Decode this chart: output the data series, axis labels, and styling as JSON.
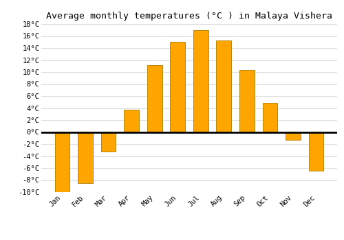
{
  "title": "Average monthly temperatures (°C ) in Malaya Vishera",
  "months": [
    "Jan",
    "Feb",
    "Mar",
    "Apr",
    "May",
    "Jun",
    "Jul",
    "Aug",
    "Sep",
    "Oct",
    "Nov",
    "Dec"
  ],
  "values": [
    -10,
    -8.5,
    -3.2,
    3.7,
    11.2,
    15.0,
    17.0,
    15.3,
    10.4,
    4.9,
    -1.3,
    -6.5
  ],
  "bar_color": "#FFA500",
  "bar_edgecolor": "#B8860B",
  "ylim": [
    -10,
    18
  ],
  "yticks": [
    -10,
    -8,
    -6,
    -4,
    -2,
    0,
    2,
    4,
    6,
    8,
    10,
    12,
    14,
    16,
    18
  ],
  "ytick_labels": [
    "-10°C",
    "-8°C",
    "-6°C",
    "-4°C",
    "-2°C",
    "0°C",
    "2°C",
    "4°C",
    "6°C",
    "8°C",
    "10°C",
    "12°C",
    "14°C",
    "16°C",
    "18°C"
  ],
  "background_color": "#ffffff",
  "grid_color": "#dddddd",
  "title_fontsize": 9.5,
  "tick_fontsize": 7.5,
  "bar_width": 0.65
}
